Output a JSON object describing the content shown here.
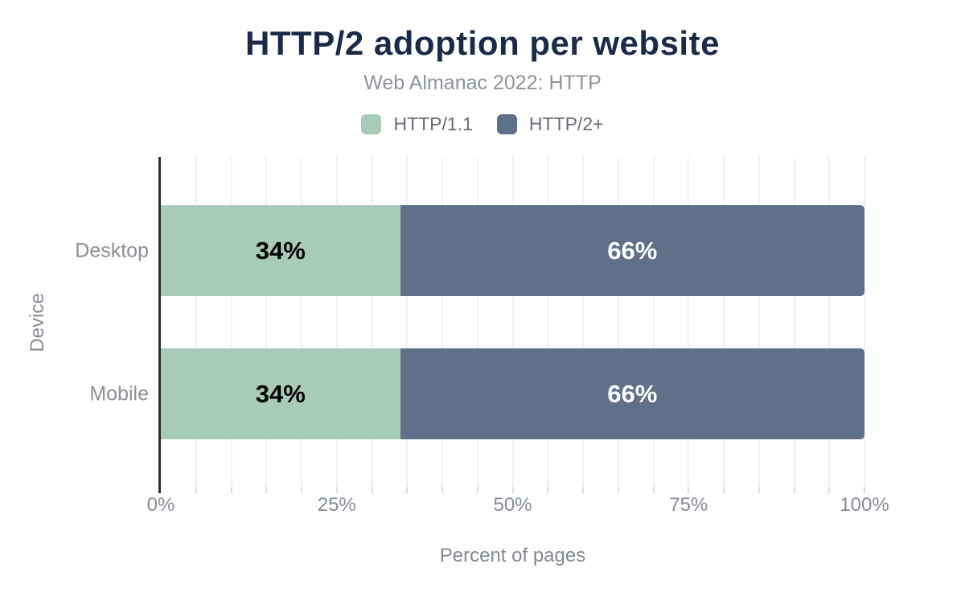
{
  "chart_data": {
    "type": "bar",
    "orientation": "horizontal",
    "stacked": true,
    "title": "HTTP/2 adoption per website",
    "subtitle": "Web Almanac 2022: HTTP",
    "xlabel": "Percent of pages",
    "ylabel": "Device",
    "categories": [
      "Desktop",
      "Mobile"
    ],
    "series": [
      {
        "name": "HTTP/1.1",
        "values": [
          34,
          34
        ],
        "color": "#a7cab9",
        "label_color": "#000000"
      },
      {
        "name": "HTTP/2+",
        "values": [
          66,
          66
        ],
        "color": "#5f7089",
        "label_color": "#ffffff"
      }
    ],
    "xlim": [
      0,
      100
    ],
    "x_ticks": [
      {
        "value": 0,
        "label": "0%"
      },
      {
        "value": 25,
        "label": "25%"
      },
      {
        "value": 50,
        "label": "50%"
      },
      {
        "value": 75,
        "label": "75%"
      },
      {
        "value": 100,
        "label": "100%"
      }
    ],
    "grid": {
      "show": true,
      "step_pct": 5
    },
    "legend_position": "top"
  },
  "colors": {
    "title": "#1b2a49",
    "subtitle": "#8d939c",
    "axis_text": "#858c95",
    "legend_text": "#666d77",
    "axis_line": "#2d2d2d",
    "gridline": "#f1f1f1",
    "background": "#ffffff"
  }
}
